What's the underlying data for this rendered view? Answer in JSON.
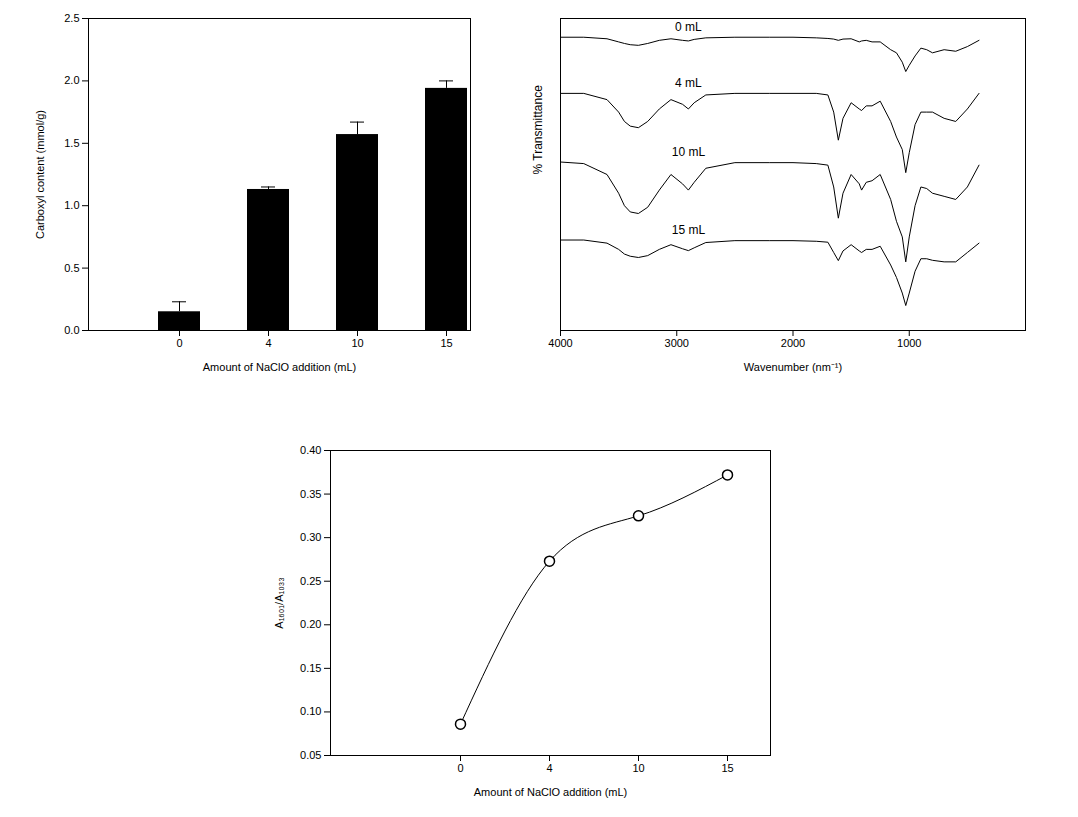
{
  "chart_data": [
    {
      "type": "bar",
      "categories": [
        "0",
        "4",
        "10",
        "15"
      ],
      "values": [
        0.15,
        1.13,
        1.57,
        1.94
      ],
      "errors": [
        0.08,
        0.02,
        0.1,
        0.06
      ],
      "color": "#000000",
      "x_label": "Amount of NaClO addition (mL)",
      "y_label": "Carboxyl content (mmol/g)",
      "ylim": [
        0,
        2.5
      ],
      "yticks": [
        {
          "value": 0,
          "label": "0.0"
        },
        0.5,
        {
          "value": 1,
          "label": "1.0"
        },
        1.5,
        {
          "value": 2,
          "label": "2.0"
        },
        2.5
      ]
    },
    {
      "type": "line",
      "x": [
        4000,
        3800,
        3600,
        3500,
        3450,
        3400,
        3330,
        3250,
        3150,
        3050,
        2950,
        2900,
        2850,
        2750,
        2500,
        2200,
        2000,
        1800,
        1700,
        1650,
        1610,
        1570,
        1500,
        1430,
        1410,
        1370,
        1320,
        1250,
        1160,
        1110,
        1060,
        1030,
        1000,
        950,
        900,
        850,
        800,
        700,
        600,
        500,
        400
      ],
      "series": [
        {
          "name": "0 mL",
          "color": "#000000",
          "values": [
            94,
            94,
            93.5,
            92.5,
            92,
            91.6,
            91.4,
            92,
            93,
            93.5,
            93,
            92.8,
            93.3,
            93.8,
            94,
            94,
            94,
            93.8,
            93.6,
            93.4,
            93,
            93.4,
            93.5,
            92.5,
            92.8,
            93,
            92.5,
            92.5,
            90,
            89,
            86,
            83,
            85,
            88,
            90.5,
            90,
            89,
            90,
            89.5,
            91,
            93
          ]
        },
        {
          "name": "4 mL",
          "color": "#000000",
          "values": [
            76,
            76,
            74,
            70,
            67,
            65.5,
            65,
            67,
            71,
            74,
            72.5,
            71,
            73,
            75.5,
            76,
            76,
            76,
            76,
            75.5,
            70,
            61,
            68,
            73,
            71,
            70.5,
            72,
            72,
            73.5,
            67,
            62,
            58,
            50.6,
            57,
            66,
            70,
            70,
            70,
            68,
            67,
            71,
            76
          ]
        },
        {
          "name": "10 mL",
          "color": "#000000",
          "values": [
            54,
            53.5,
            50,
            44,
            40,
            38,
            37.5,
            39.5,
            45,
            50,
            47,
            45,
            47.5,
            52,
            53.8,
            53.8,
            53.8,
            53.5,
            53,
            46,
            36,
            44,
            50,
            47,
            45,
            47.5,
            48,
            50,
            42,
            35,
            30,
            22,
            30,
            40,
            46,
            45.5,
            44,
            43,
            42,
            46,
            53
          ]
        },
        {
          "name": "15 mL",
          "color": "#000000",
          "values": [
            29,
            29,
            28,
            26,
            24.5,
            23.8,
            23.4,
            24,
            26,
            27.5,
            26.2,
            25.6,
            26.5,
            28.2,
            28.8,
            28.8,
            28.8,
            28.6,
            28.3,
            25,
            22.4,
            25.5,
            27.5,
            25.5,
            25,
            26,
            26,
            27,
            21,
            17,
            12,
            8,
            12,
            19,
            23,
            23,
            22.5,
            22,
            22,
            25,
            28
          ]
        }
      ],
      "x_label": "Wavenumber (nm⁻¹)",
      "y_label": "% Transmittance",
      "xlim": [
        4000,
        0
      ],
      "xticks": [
        4000,
        3000,
        2000,
        1000
      ],
      "ylim": [
        0,
        100
      ],
      "tick_labels": "x"
    },
    {
      "type": "line",
      "categories": [
        "0",
        "4",
        "10",
        "15"
      ],
      "values": [
        0.086,
        0.273,
        0.325,
        0.372
      ],
      "color": "#000000",
      "marker": "circle",
      "x_label": "Amount of NaClO addition (mL)",
      "y_label": "A₁₆₀₁/A₁₀₃₃",
      "ylim": [
        0.05,
        0.4
      ],
      "yticks": [
        0.05,
        {
          "value": 0.1,
          "label": "0.10"
        },
        0.15,
        {
          "value": 0.2,
          "label": "0.20"
        },
        0.25,
        {
          "value": 0.3,
          "label": "0.30"
        },
        0.35,
        {
          "value": 0.4,
          "label": "0.40"
        }
      ]
    }
  ]
}
